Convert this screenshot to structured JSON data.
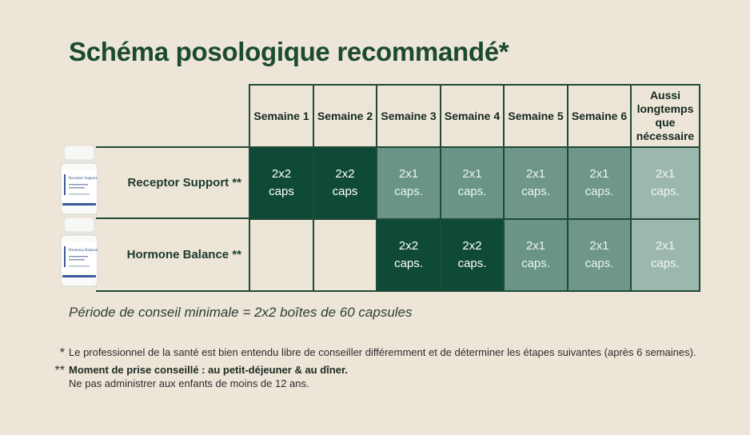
{
  "title": "Schéma posologique recommandé*",
  "columns": [
    "Semaine 1",
    "Semaine 2",
    "Semaine 3",
    "Semaine 4",
    "Semaine 5",
    "Semaine 6",
    "Aussi longtemps que nécessaire"
  ],
  "rows": [
    {
      "label": "Receptor Support **",
      "bottle_text": "Receptor Support",
      "cells": [
        {
          "qty": "2x2",
          "unit": "caps"
        },
        {
          "qty": "2x2",
          "unit": "caps"
        },
        {
          "qty": "2x1",
          "unit": "caps."
        },
        {
          "qty": "2x1",
          "unit": "caps."
        },
        {
          "qty": "2x1",
          "unit": "caps."
        },
        {
          "qty": "2x1",
          "unit": "caps."
        },
        {
          "qty": "2x1",
          "unit": "caps."
        }
      ]
    },
    {
      "label": "Hormone Balance **",
      "bottle_text": "Hormone Balance",
      "cells": [
        {
          "qty": "",
          "unit": ""
        },
        {
          "qty": "",
          "unit": ""
        },
        {
          "qty": "2x2",
          "unit": "caps."
        },
        {
          "qty": "2x2",
          "unit": "caps."
        },
        {
          "qty": "2x1",
          "unit": "caps."
        },
        {
          "qty": "2x1",
          "unit": "caps."
        },
        {
          "qty": "2x1",
          "unit": "caps."
        }
      ]
    }
  ],
  "minimum_period": "Période de conseil minimale = 2x2 boîtes de 60 capsules",
  "footnotes": {
    "star1": "*",
    "note1": "Le professionnel de la santé est bien entendu libre de conseiller différemment et de déterminer les étapes suivantes (après 6 semaines).",
    "star2": "**",
    "note2_bold": "Moment de prise conseillé : au petit-déjeuner & au dîner.",
    "note2_line2": "Ne pas administrer aux enfants de moins de 12 ans."
  },
  "colors": {
    "background": "#ede5d8",
    "title": "#1b4a30",
    "dark_green": "#0f4a38",
    "mid_green": "#6a9488",
    "light_green": "#9cb8ae",
    "border": "#1f4a35"
  }
}
